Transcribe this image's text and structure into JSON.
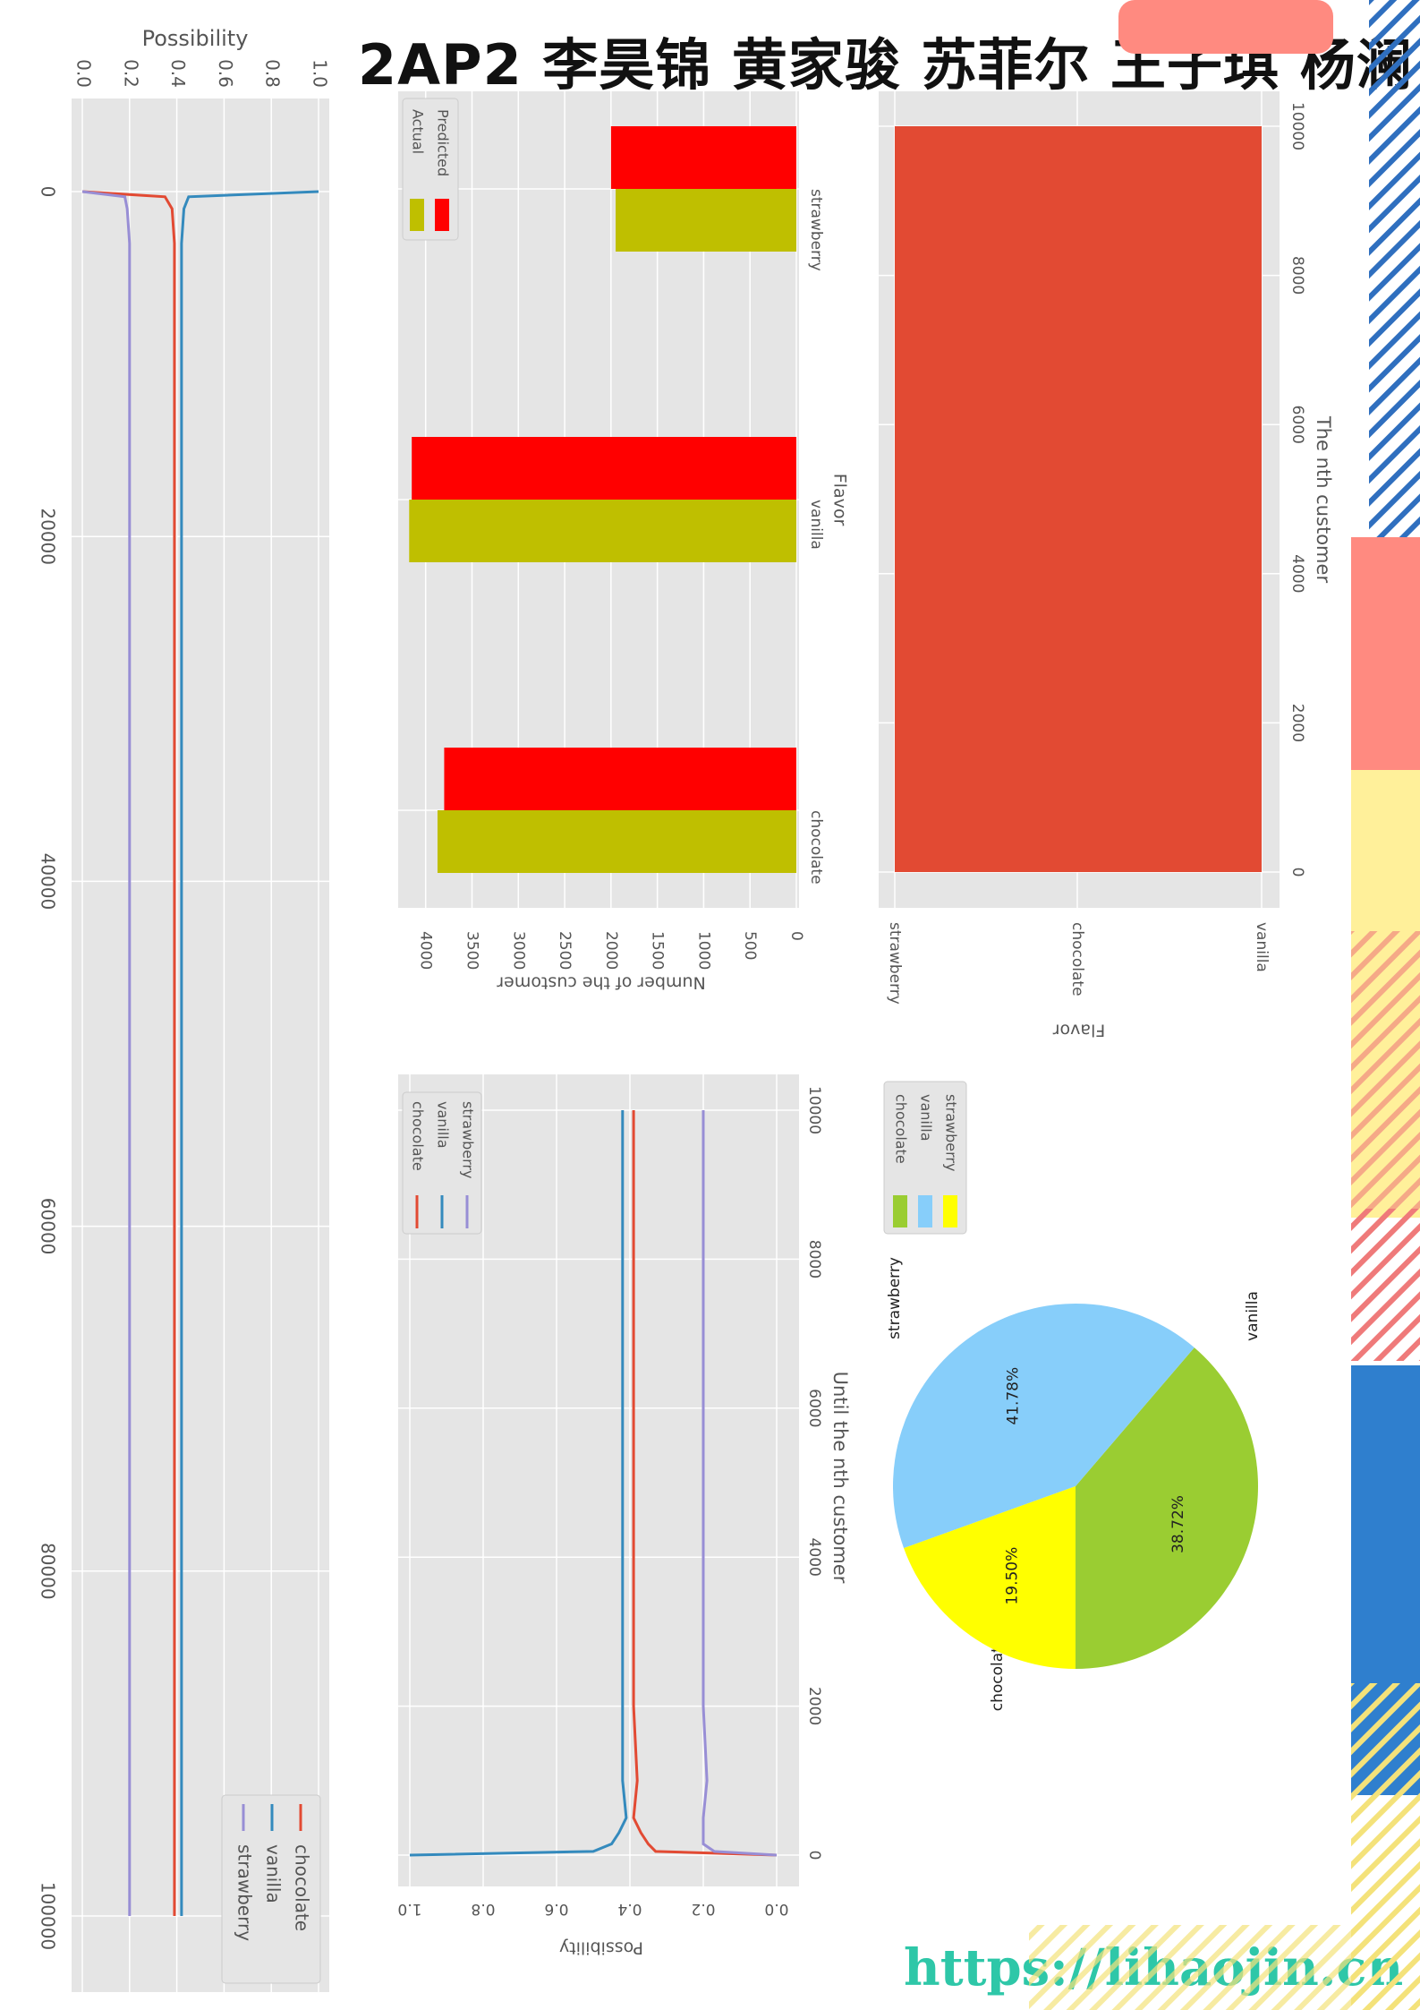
{
  "header": {
    "title": "2AP2 李昊锦 黄家骏 苏菲尔 王子琪 杨澜"
  },
  "footer": {
    "url": "https://lihaojin.cn"
  },
  "decor": {
    "coral": "#ff8a80",
    "yellow": "#fff09a",
    "blue": "#2f7fce",
    "stripe_blue": "#2f6fbf",
    "stripe_red": "#ef7a7a",
    "stripe_yellow": "#f4e27a"
  },
  "chart_data": [
    {
      "type": "line",
      "ylabel": "Possibility",
      "xlim": [
        0,
        100000
      ],
      "ylim": [
        0,
        1
      ],
      "xticks": [
        "0",
        "20000",
        "40000",
        "60000",
        "80000",
        "100000"
      ],
      "yticks": [
        "0.0",
        "0.2",
        "0.4",
        "0.6",
        "0.8",
        "1.0"
      ],
      "legend_position": "lower-right",
      "grid": true,
      "series": [
        {
          "name": "chocolate",
          "color": "#e24a33",
          "x": [
            0,
            300,
            1000,
            3000,
            10000,
            100000
          ],
          "values": [
            0.0,
            0.35,
            0.38,
            0.39,
            0.39,
            0.39
          ]
        },
        {
          "name": "vanilla",
          "color": "#348abd",
          "x": [
            0,
            300,
            1000,
            3000,
            10000,
            100000
          ],
          "values": [
            1.0,
            0.45,
            0.43,
            0.42,
            0.42,
            0.42
          ]
        },
        {
          "name": "strawberry",
          "color": "#988ed5",
          "x": [
            0,
            300,
            1000,
            3000,
            10000,
            100000
          ],
          "values": [
            0.0,
            0.18,
            0.19,
            0.2,
            0.2,
            0.2
          ]
        }
      ]
    },
    {
      "type": "bar",
      "xlabel": "Flavor",
      "ylabel": "Number of the customer",
      "categories": [
        "chocolate",
        "vanilla",
        "strawberry"
      ],
      "ylim": [
        0,
        4200
      ],
      "yticks": [
        "0",
        "500",
        "1000",
        "1500",
        "2000",
        "2500",
        "3000",
        "3500",
        "4000"
      ],
      "legend_position": "top-left",
      "grid": true,
      "series": [
        {
          "name": "Actual",
          "color": "#bfbf00",
          "values": [
            3872,
            4178,
            1950
          ]
        },
        {
          "name": "Predicted",
          "color": "#ff0000",
          "values": [
            3800,
            4150,
            2000
          ]
        }
      ]
    },
    {
      "type": "bar",
      "xlabel": "The nth customer",
      "ylabel": "Flavor",
      "categories": [
        "strawberry",
        "chocolate",
        "vanilla"
      ],
      "xlim": [
        0,
        10000
      ],
      "xticks": [
        "0",
        "2000",
        "4000",
        "6000",
        "8000",
        "10000"
      ],
      "grid": true,
      "series": [
        {
          "name": "",
          "color": "#e24a33",
          "values": [
            10000,
            10000,
            10000
          ]
        }
      ]
    },
    {
      "type": "line",
      "xlabel": "Until the nth customer",
      "ylabel": "Possibility",
      "xlim": [
        0,
        10000
      ],
      "ylim": [
        0,
        1
      ],
      "xticks": [
        "0",
        "2000",
        "4000",
        "6000",
        "8000",
        "10000"
      ],
      "yticks": [
        "0.0",
        "0.2",
        "0.4",
        "0.6",
        "0.8",
        "1.0"
      ],
      "legend_position": "top-left",
      "grid": true,
      "series": [
        {
          "name": "chocolate",
          "color": "#e24a33",
          "x": [
            0,
            50,
            150,
            300,
            500,
            1000,
            2000,
            4000,
            6000,
            8000,
            10000
          ],
          "values": [
            0.0,
            0.33,
            0.35,
            0.37,
            0.39,
            0.38,
            0.39,
            0.39,
            0.39,
            0.39,
            0.39
          ]
        },
        {
          "name": "vanilla",
          "color": "#348abd",
          "x": [
            0,
            50,
            150,
            300,
            500,
            1000,
            2000,
            4000,
            6000,
            8000,
            10000
          ],
          "values": [
            1.0,
            0.5,
            0.45,
            0.43,
            0.41,
            0.42,
            0.42,
            0.42,
            0.42,
            0.42,
            0.42
          ]
        },
        {
          "name": "strawberry",
          "color": "#988ed5",
          "x": [
            0,
            50,
            150,
            300,
            500,
            1000,
            2000,
            4000,
            6000,
            8000,
            10000
          ],
          "values": [
            0.0,
            0.17,
            0.2,
            0.2,
            0.2,
            0.19,
            0.2,
            0.2,
            0.2,
            0.2,
            0.2
          ]
        }
      ]
    },
    {
      "type": "pie",
      "categories": [
        "chocolate",
        "vanilla",
        "strawberry"
      ],
      "values": [
        38.72,
        41.78,
        19.5
      ],
      "labels": [
        "38.72%",
        "41.78%",
        "19.50%"
      ],
      "colors": [
        "#9acd32",
        "#87cefa",
        "#ffff00"
      ],
      "legend_position": "top-left"
    }
  ]
}
